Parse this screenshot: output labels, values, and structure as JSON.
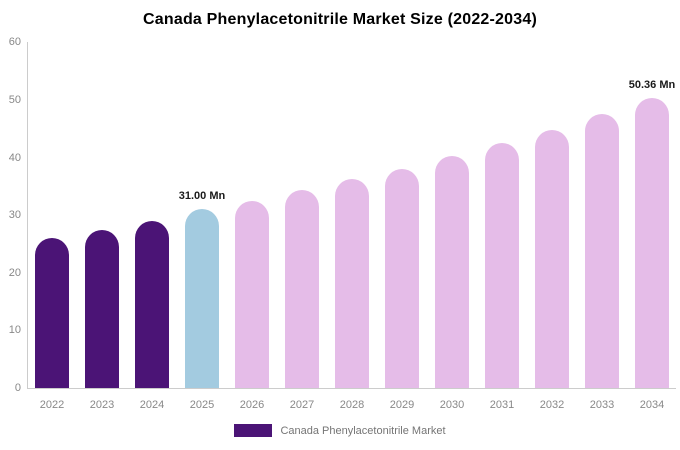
{
  "title": "Canada Phenylacetonitrile Market Size (2022-2034)",
  "chart_data": {
    "type": "bar",
    "title": "Canada Phenylacetonitrile Market Size (2022-2034)",
    "categories": [
      "2022",
      "2023",
      "2024",
      "2025",
      "2026",
      "2027",
      "2028",
      "2029",
      "2030",
      "2031",
      "2032",
      "2033",
      "2034"
    ],
    "values": [
      26.0,
      27.5,
      29.0,
      31.0,
      32.4,
      34.4,
      36.3,
      38.1,
      40.2,
      42.5,
      44.8,
      47.5,
      50.36
    ],
    "unit": "Mn",
    "xlabel": "",
    "ylabel": "",
    "ylim": [
      0,
      60
    ],
    "yticks": [
      0,
      10,
      20,
      30,
      40,
      50,
      60
    ],
    "grid": false,
    "legend_position": "bottom",
    "bar_colors": [
      "#4B1476",
      "#4B1476",
      "#4B1476",
      "#A3CBE0",
      "#E5BCE8",
      "#E5BCE8",
      "#E5BCE8",
      "#E5BCE8",
      "#E5BCE8",
      "#E5BCE8",
      "#E5BCE8",
      "#E5BCE8",
      "#E5BCE8"
    ],
    "annotations": [
      {
        "index": 3,
        "label": "31.00 Mn"
      },
      {
        "index": 12,
        "label": "50.36 Mn"
      }
    ],
    "legend": {
      "label": "Canada Phenylacetonitrile Market",
      "swatch_color": "#4B1476"
    }
  },
  "colors": {
    "historical_purple": "#4B1476",
    "highlight_blue": "#A3CBE0",
    "forecast_pink": "#E5BCE8",
    "axis_line": "#cccccc",
    "tick_text": "#888888",
    "legend_text": "#757575",
    "title_text": "#000000",
    "background": "#ffffff"
  }
}
